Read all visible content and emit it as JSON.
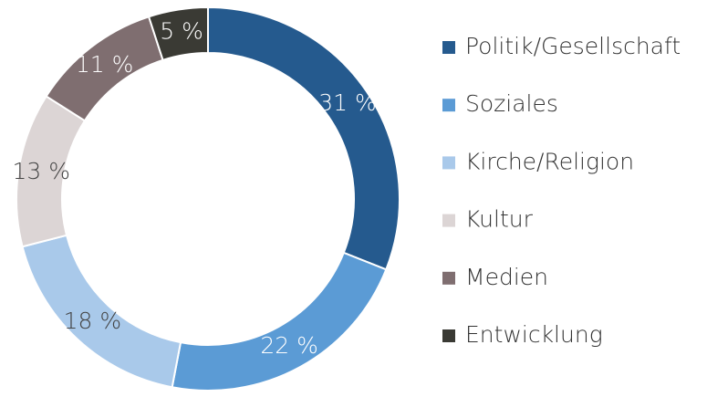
{
  "chart_data": {
    "type": "donut",
    "categories": [
      "Politik/Gesellschaft",
      "Soziales",
      "Kirche/Religion",
      "Kultur",
      "Medien",
      "Entwicklung"
    ],
    "values": [
      31,
      22,
      18,
      13,
      11,
      5
    ],
    "value_labels": [
      "31 %",
      "22 %",
      "18 %",
      "13 %",
      "11 %",
      "5 %"
    ],
    "colors": [
      "#255a8e",
      "#5b9bd5",
      "#a9c9ea",
      "#dcd5d5",
      "#7f6e70",
      "#3a3a34"
    ],
    "legend": "right"
  }
}
